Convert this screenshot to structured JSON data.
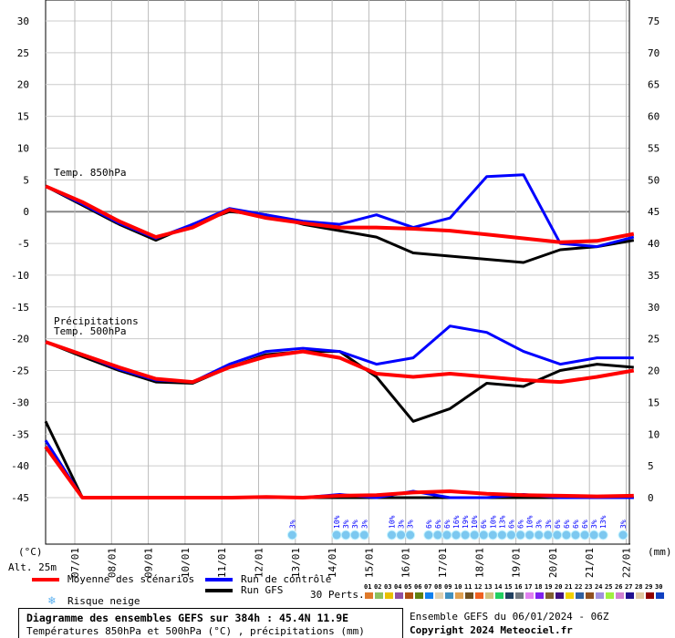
{
  "chart_data": {
    "type": "line",
    "title": "Diagramme des ensembles GEFS sur 384h : 45.4N 11.9E",
    "subtitle": "Températures 850hPa et 500hPa (°C) , précipitations (mm)",
    "run_info": "Ensemble GEFS du 06/01/2024 - 06Z",
    "copyright": "Copyright 2024 Meteociel.fr",
    "left_unit": "(°C)",
    "right_unit": "(mm)",
    "altitude": "Alt. 25m",
    "ylim_left": [
      -45,
      30
    ],
    "ylim_right": [
      0,
      75
    ],
    "left_ticks": [
      30,
      25,
      20,
      15,
      10,
      5,
      0,
      -5,
      -10,
      -15,
      -20,
      -25,
      -30,
      -35,
      -40,
      -45
    ],
    "right_ticks": [
      75,
      70,
      65,
      60,
      55,
      50,
      45,
      40,
      35,
      30,
      25,
      20,
      15,
      10,
      5,
      0
    ],
    "x_labels": [
      "07/01",
      "08/01",
      "09/01",
      "10/01",
      "11/01",
      "12/01",
      "13/01",
      "14/01",
      "15/01",
      "16/01",
      "17/01",
      "18/01",
      "19/01",
      "20/01",
      "21/01",
      "22/01"
    ],
    "x_unit": "hours from 06/01/2024 06Z",
    "panel_labels": {
      "t850": "Temp. 850hPa",
      "precip": "Précipitations",
      "t500": "Temp. 500hPa"
    },
    "hours": [
      0,
      24,
      48,
      72,
      96,
      120,
      144,
      168,
      192,
      216,
      240,
      264,
      288,
      312,
      336,
      360,
      384
    ],
    "series": [
      {
        "name": "Moyenne des scénarios",
        "variable": "t850",
        "color": "#ff0000",
        "values": [
          4,
          1.5,
          -1.5,
          -4,
          -2.5,
          0.3,
          -1,
          -1.8,
          -2.5,
          -2.5,
          -2.7,
          -3,
          -3.6,
          -4.2,
          -4.8,
          -4.6,
          -3.5
        ]
      },
      {
        "name": "Moyenne des scénarios",
        "variable": "t500",
        "color": "#ff0000",
        "values": [
          -20.5,
          -22.5,
          -24.5,
          -26.3,
          -26.8,
          -24.5,
          -22.8,
          -22,
          -23,
          -25.5,
          -26,
          -25.5,
          -26,
          -26.5,
          -26.8,
          -26,
          -25
        ]
      },
      {
        "name": "Moyenne des scénarios",
        "variable": "precip_mm",
        "color": "#ff0000",
        "values": [
          8,
          0,
          0,
          0,
          0,
          0,
          0.1,
          0,
          0.3,
          0.4,
          0.8,
          1,
          0.6,
          0.4,
          0.3,
          0.2,
          0.3
        ]
      },
      {
        "name": "Run de contrôle",
        "variable": "t850",
        "color": "#0000ff",
        "values": [
          4,
          1.2,
          -1.8,
          -4.2,
          -2,
          0.5,
          -0.5,
          -1.5,
          -2,
          -0.5,
          -2.5,
          -1,
          5.5,
          5.8,
          -5,
          -5.5,
          -4
        ]
      },
      {
        "name": "Run de contrôle",
        "variable": "t500",
        "color": "#0000ff",
        "values": [
          -20.5,
          -22.5,
          -24.8,
          -26.5,
          -26.8,
          -24,
          -22,
          -21.5,
          -22,
          -24,
          -23,
          -18,
          -19,
          -22,
          -24,
          -23,
          -23
        ]
      },
      {
        "name": "Run de contrôle",
        "variable": "precip_mm",
        "color": "#0000ff",
        "values": [
          9,
          0,
          0,
          0,
          0,
          0,
          0,
          0,
          0.5,
          0,
          1,
          0,
          0,
          0.5,
          0,
          0,
          0
        ]
      },
      {
        "name": "Run GFS",
        "variable": "t850",
        "color": "#000000",
        "values": [
          4,
          1,
          -2,
          -4.5,
          -2,
          0,
          -0.5,
          -2,
          -3,
          -4,
          -6.5,
          -7,
          -7.5,
          -8,
          -6,
          -5.5,
          -4.5
        ]
      },
      {
        "name": "Run GFS",
        "variable": "t500",
        "color": "#000000",
        "values": [
          -20.5,
          -22.8,
          -25,
          -26.8,
          -27,
          -24.5,
          -22.5,
          -22,
          -22,
          -26,
          -33,
          -31,
          -27,
          -27.5,
          -25,
          -24,
          -24.5
        ]
      },
      {
        "name": "Run GFS",
        "variable": "precip_mm",
        "color": "#000000",
        "values": [
          12,
          0,
          0,
          0,
          0,
          0,
          0,
          0,
          0,
          0,
          0,
          0,
          0,
          0,
          0,
          0,
          0
        ]
      }
    ],
    "legend": {
      "mean": "Moyenne des scénarios",
      "control": "Run de contrôle",
      "gfs": "Run GFS",
      "snow": "Risque neige",
      "perts_label": "30 Perts."
    },
    "perturbations": [
      {
        "id": "01",
        "color": "#e07a2a"
      },
      {
        "id": "02",
        "color": "#8cc060"
      },
      {
        "id": "03",
        "color": "#e8c000"
      },
      {
        "id": "04",
        "color": "#9050a0"
      },
      {
        "id": "05",
        "color": "#b05010"
      },
      {
        "id": "06",
        "color": "#608010"
      },
      {
        "id": "07",
        "color": "#1080f0"
      },
      {
        "id": "08",
        "color": "#e0d0b0"
      },
      {
        "id": "09",
        "color": "#4090c0"
      },
      {
        "id": "10",
        "color": "#e0a050"
      },
      {
        "id": "11",
        "color": "#705020"
      },
      {
        "id": "12",
        "color": "#f06020"
      },
      {
        "id": "13",
        "color": "#d0c080"
      },
      {
        "id": "14",
        "color": "#20d060"
      },
      {
        "id": "15",
        "color": "#204060"
      },
      {
        "id": "16",
        "color": "#707880"
      },
      {
        "id": "17",
        "color": "#e080f0"
      },
      {
        "id": "18",
        "color": "#8020f0"
      },
      {
        "id": "19",
        "color": "#806030"
      },
      {
        "id": "20",
        "color": "#401080"
      },
      {
        "id": "21",
        "color": "#f0d000"
      },
      {
        "id": "22",
        "color": "#3060a0"
      },
      {
        "id": "23",
        "color": "#905020"
      },
      {
        "id": "24",
        "color": "#a090e0"
      },
      {
        "id": "25",
        "color": "#a0f040"
      },
      {
        "id": "26",
        "color": "#d080d0"
      },
      {
        "id": "27",
        "color": "#201090"
      },
      {
        "id": "28",
        "color": "#e0c8a0"
      },
      {
        "id": "29",
        "color": "#900000"
      },
      {
        "id": "30",
        "color": "#1040c0"
      }
    ],
    "snow_risk": [
      {
        "hour": 161,
        "pct": "3%"
      },
      {
        "hour": 190,
        "pct": "10%"
      },
      {
        "hour": 196,
        "pct": "3%"
      },
      {
        "hour": 202,
        "pct": "3%"
      },
      {
        "hour": 208,
        "pct": "3%"
      },
      {
        "hour": 226,
        "pct": "10%"
      },
      {
        "hour": 232,
        "pct": "3%"
      },
      {
        "hour": 238,
        "pct": "3%"
      },
      {
        "hour": 250,
        "pct": "6%"
      },
      {
        "hour": 256,
        "pct": "6%"
      },
      {
        "hour": 262,
        "pct": "6%"
      },
      {
        "hour": 268,
        "pct": "16%"
      },
      {
        "hour": 274,
        "pct": "19%"
      },
      {
        "hour": 280,
        "pct": "10%"
      },
      {
        "hour": 286,
        "pct": "6%"
      },
      {
        "hour": 292,
        "pct": "10%"
      },
      {
        "hour": 298,
        "pct": "13%"
      },
      {
        "hour": 304,
        "pct": "6%"
      },
      {
        "hour": 310,
        "pct": "6%"
      },
      {
        "hour": 316,
        "pct": "10%"
      },
      {
        "hour": 322,
        "pct": "3%"
      },
      {
        "hour": 328,
        "pct": "3%"
      },
      {
        "hour": 334,
        "pct": "6%"
      },
      {
        "hour": 340,
        "pct": "6%"
      },
      {
        "hour": 346,
        "pct": "6%"
      },
      {
        "hour": 352,
        "pct": "6%"
      },
      {
        "hour": 358,
        "pct": "3%"
      },
      {
        "hour": 364,
        "pct": "13%"
      },
      {
        "hour": 377,
        "pct": "3%"
      }
    ]
  }
}
